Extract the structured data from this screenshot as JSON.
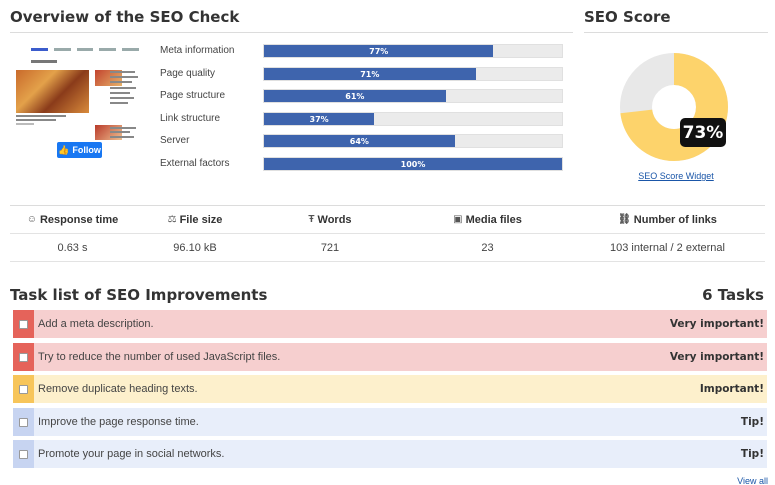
{
  "overview": {
    "title": "Overview of the SEO Check",
    "facebook_button": "Follow",
    "metrics": [
      {
        "label": "Meta information",
        "value": "77%",
        "percent": 77
      },
      {
        "label": "Page quality",
        "value": "71%",
        "percent": 71
      },
      {
        "label": "Page structure",
        "value": "61%",
        "percent": 61
      },
      {
        "label": "Link structure",
        "value": "37%",
        "percent": 37
      },
      {
        "label": "Server",
        "value": "64%",
        "percent": 64
      },
      {
        "label": "External factors",
        "value": "100%",
        "percent": 100
      }
    ]
  },
  "score": {
    "title": "SEO Score",
    "value": "73%",
    "percent": 73,
    "colors": {
      "filled": "#fdd36b",
      "empty": "#e8e8e8"
    },
    "widget_link": "SEO Score Widget"
  },
  "stats": {
    "headers": [
      {
        "icon": "smiley-icon",
        "label": "Response time"
      },
      {
        "icon": "scale-icon",
        "label": "File size"
      },
      {
        "icon": "text-icon",
        "label": "Words"
      },
      {
        "icon": "image-icon",
        "label": "Media files"
      },
      {
        "icon": "link-icon",
        "label": "Number of links"
      }
    ],
    "values": [
      "0.63 s",
      "96.10 kB",
      "721",
      "23",
      "103 internal / 2 external"
    ]
  },
  "tasks": {
    "title": "Task list of SEO Improvements",
    "count": "6 Tasks",
    "items": [
      {
        "text": "Add a meta description.",
        "priority": "Very important!",
        "level": "red"
      },
      {
        "text": "Try to reduce the number of used JavaScript files.",
        "priority": "Very important!",
        "level": "red"
      },
      {
        "text": "Remove duplicate heading texts.",
        "priority": "Important!",
        "level": "yellow"
      },
      {
        "text": "Improve the page response time.",
        "priority": "Tip!",
        "level": "blue"
      },
      {
        "text": "Promote your page in social networks.",
        "priority": "Tip!",
        "level": "blue"
      }
    ],
    "view_all": "View all"
  },
  "colors": {
    "bar": "#3e64ad",
    "link": "#1a56a8",
    "red": "#e5635a",
    "yellow": "#f7c55a",
    "blue": "#c7d4f1"
  }
}
